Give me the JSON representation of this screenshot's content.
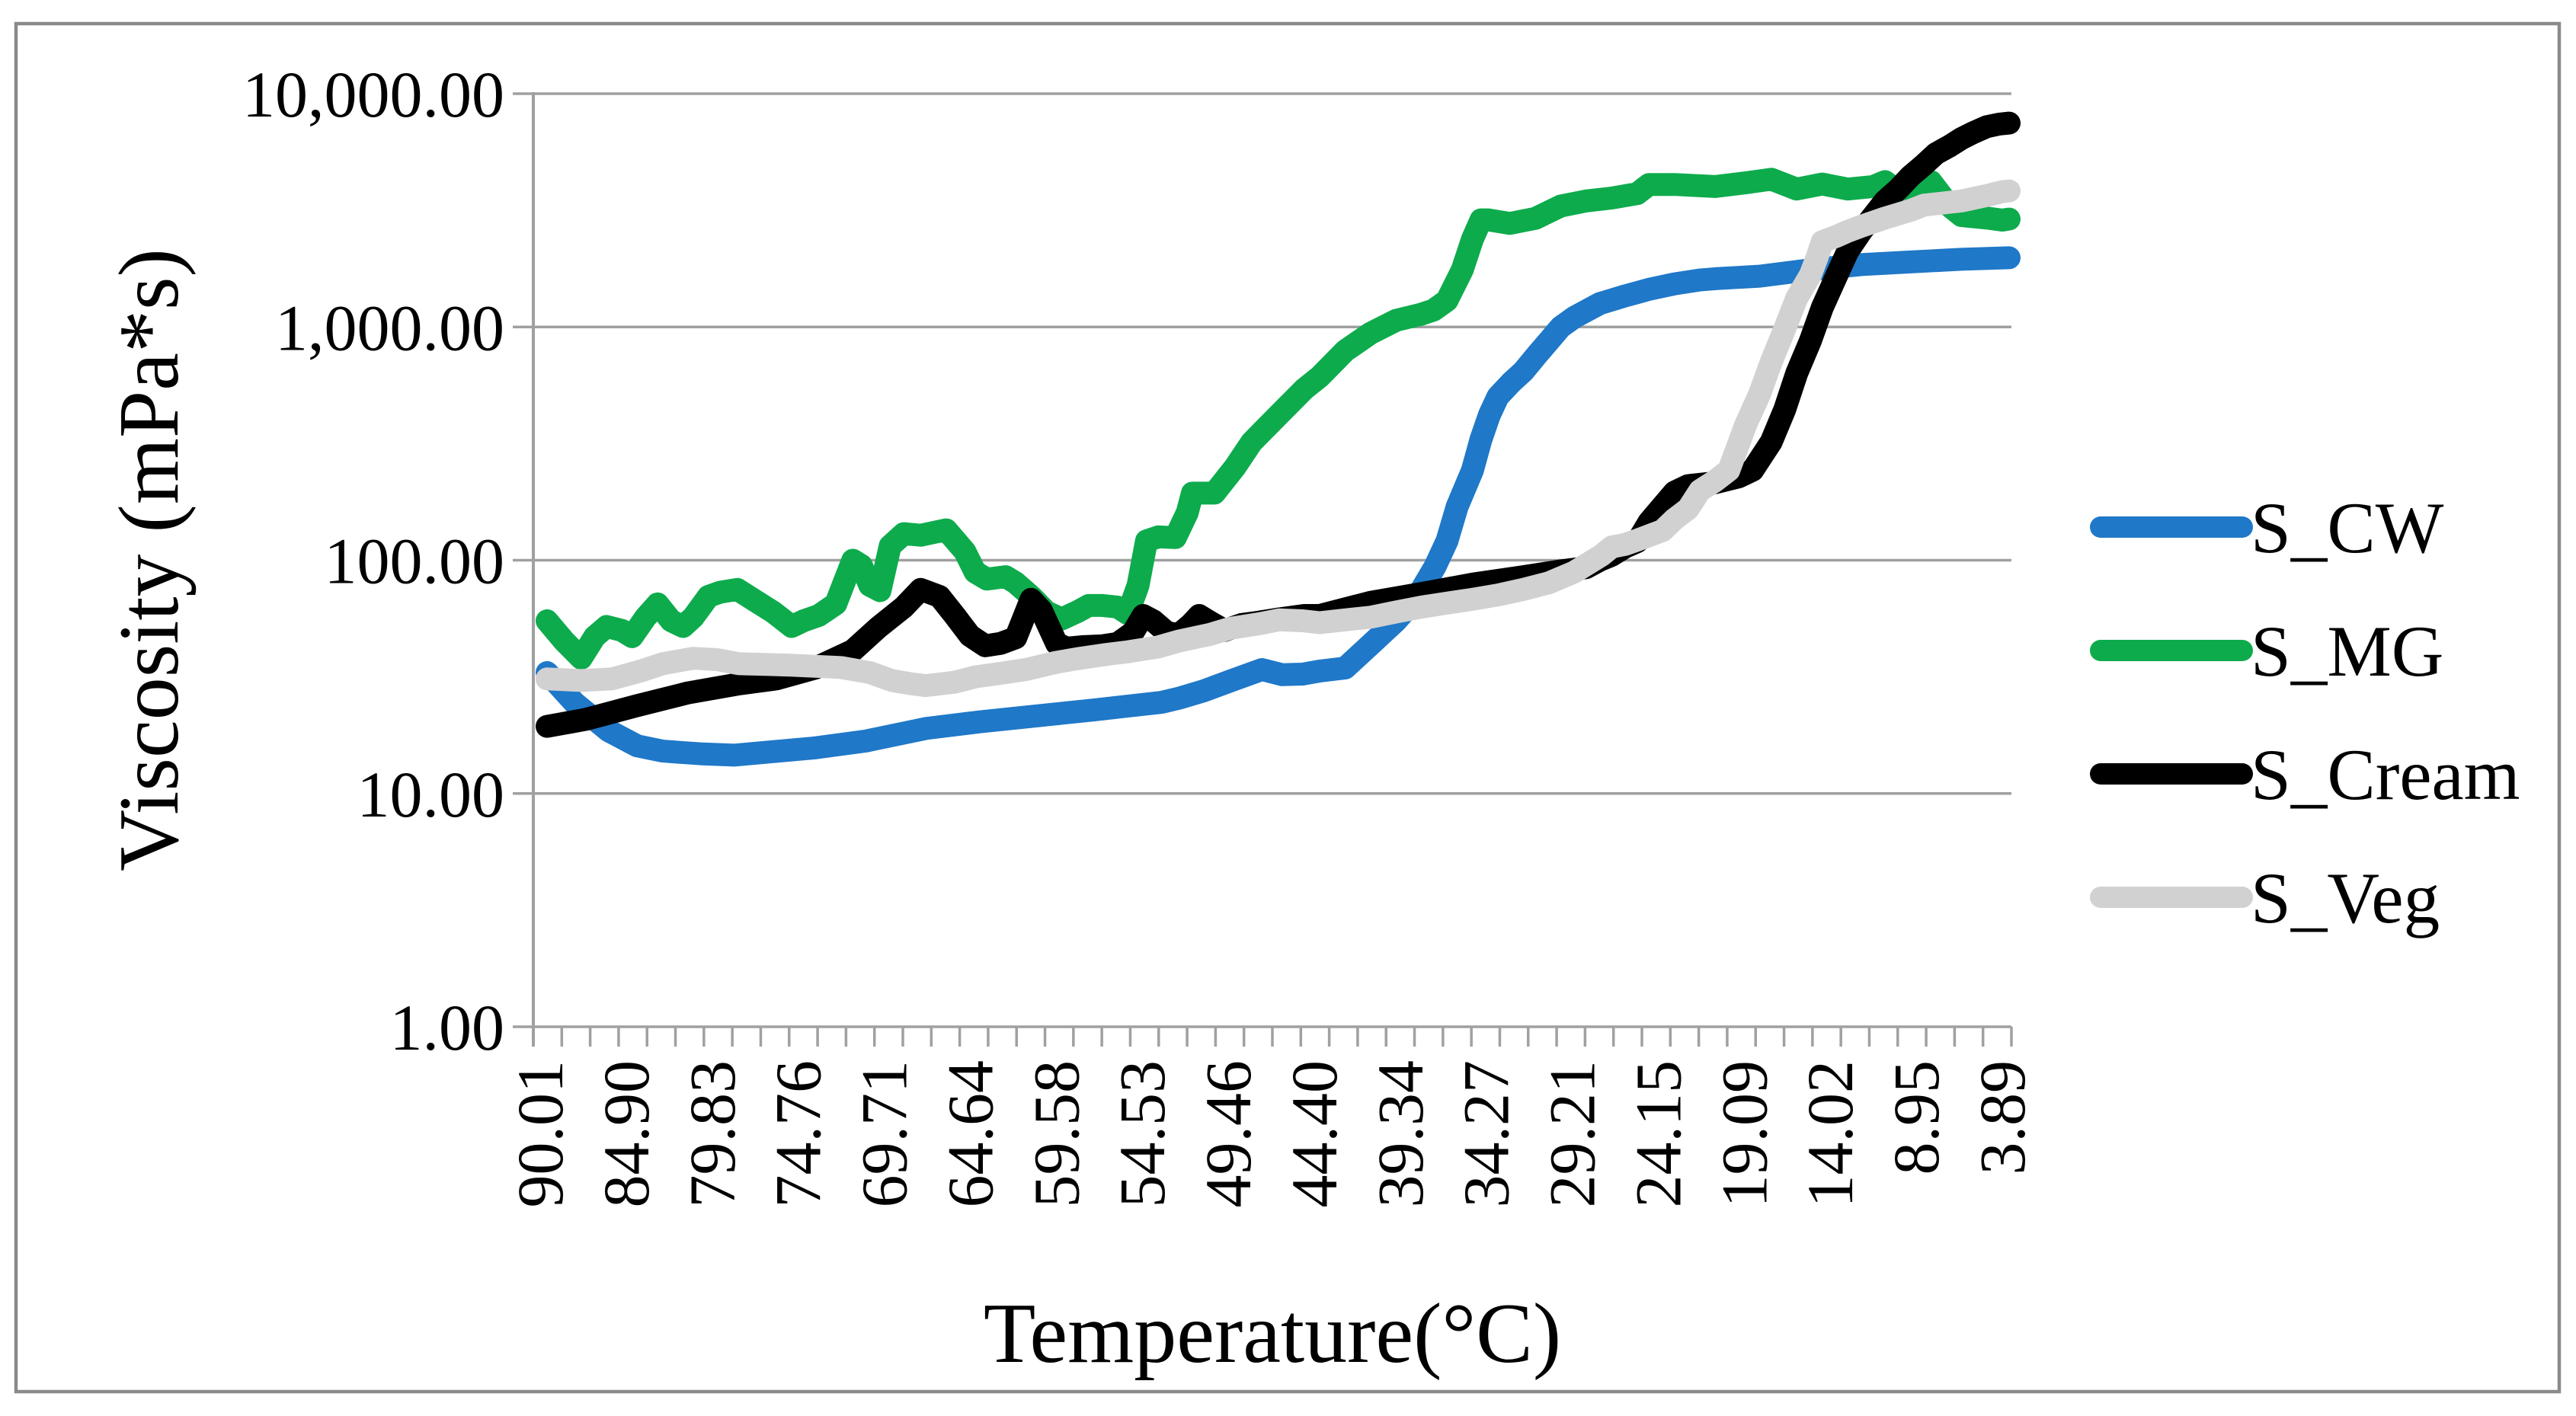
{
  "figure": {
    "background": "#ffffff",
    "border_color": "#8a8a8a",
    "grid_color": "#a0a0a0",
    "text_color": "#000000"
  },
  "chart_data": {
    "type": "line",
    "title": "",
    "xlabel": "Temperature(°C)",
    "ylabel": "Viscosity (mPa*s)",
    "grid": "horizontal",
    "legend_position": "right",
    "x_axis": {
      "direction": "decreasing",
      "max": 90.01,
      "min": 3.89,
      "tick_labels": [
        "90.01",
        "84.90",
        "79.83",
        "74.76",
        "69.71",
        "64.64",
        "59.58",
        "54.53",
        "49.46",
        "44.40",
        "39.34",
        "34.27",
        "29.21",
        "24.15",
        "19.09",
        "14.02",
        "8.95",
        "3.89"
      ],
      "minor_tick_count": 53
    },
    "y_axis": {
      "scale": "log10",
      "min": 1,
      "max": 10000,
      "tick_values": [
        10000,
        1000,
        100,
        10,
        1
      ],
      "tick_labels": [
        "10,000.00",
        "1,000.00",
        "100.00",
        "10.00",
        "1.00"
      ]
    },
    "series": [
      {
        "name": "S_CW",
        "color": "#1F78C8",
        "points": [
          [
            90.01,
            33
          ],
          [
            88.4,
            24.5
          ],
          [
            86.4,
            18.6
          ],
          [
            84.7,
            16
          ],
          [
            83.2,
            15.2
          ],
          [
            81,
            14.8
          ],
          [
            79,
            14.6
          ],
          [
            77.2,
            15
          ],
          [
            74.2,
            15.7
          ],
          [
            71.2,
            16.8
          ],
          [
            67.7,
            19
          ],
          [
            64.5,
            20.3
          ],
          [
            62,
            21.2
          ],
          [
            59.9,
            22
          ],
          [
            57.8,
            22.8
          ],
          [
            55.8,
            23.7
          ],
          [
            53.8,
            24.6
          ],
          [
            52.8,
            25.6
          ],
          [
            51.3,
            27.6
          ],
          [
            49.8,
            30.3
          ],
          [
            47.9,
            34
          ],
          [
            46.7,
            32.3
          ],
          [
            45.5,
            32.5
          ],
          [
            44.5,
            33.5
          ],
          [
            43,
            34.5
          ],
          [
            41.5,
            43.5
          ],
          [
            40,
            55
          ],
          [
            39.2,
            64
          ],
          [
            38.5,
            75
          ],
          [
            37.7,
            94
          ],
          [
            37,
            121
          ],
          [
            36.4,
            170
          ],
          [
            35.5,
            243
          ],
          [
            35,
            330
          ],
          [
            34.5,
            420
          ],
          [
            34,
            503
          ],
          [
            33.2,
            580
          ],
          [
            32.5,
            646
          ],
          [
            31.7,
            760
          ],
          [
            31,
            871
          ],
          [
            30.3,
            1000
          ],
          [
            29.5,
            1100
          ],
          [
            28,
            1260
          ],
          [
            26.5,
            1360
          ],
          [
            25.1,
            1450
          ],
          [
            23.6,
            1530
          ],
          [
            22.1,
            1590
          ],
          [
            21.2,
            1610
          ],
          [
            18.6,
            1650
          ],
          [
            15.6,
            1760
          ],
          [
            12.6,
            1850
          ],
          [
            9.7,
            1900
          ],
          [
            6.7,
            1950
          ],
          [
            3.89,
            1980
          ]
        ]
      },
      {
        "name": "S_MG",
        "color": "#0DAB4C",
        "points": [
          [
            90.01,
            55
          ],
          [
            89,
            45
          ],
          [
            88,
            38
          ],
          [
            87.2,
            47
          ],
          [
            86.5,
            52
          ],
          [
            85.6,
            50
          ],
          [
            85,
            47
          ],
          [
            84.2,
            57
          ],
          [
            83.5,
            65
          ],
          [
            82.7,
            55
          ],
          [
            82,
            52
          ],
          [
            81.4,
            57
          ],
          [
            80.5,
            70
          ],
          [
            79.8,
            73
          ],
          [
            78.8,
            75
          ],
          [
            77.6,
            66
          ],
          [
            76.7,
            60
          ],
          [
            75.6,
            52
          ],
          [
            74.9,
            55
          ],
          [
            74,
            58
          ],
          [
            73,
            65
          ],
          [
            72,
            100
          ],
          [
            71.5,
            95
          ],
          [
            71,
            78
          ],
          [
            70.4,
            74
          ],
          [
            69.8,
            115
          ],
          [
            69,
            130
          ],
          [
            68,
            128
          ],
          [
            66.5,
            135
          ],
          [
            65.4,
            109
          ],
          [
            64.8,
            89
          ],
          [
            64.1,
            83
          ],
          [
            63,
            85
          ],
          [
            62.4,
            80
          ],
          [
            61.5,
            70
          ],
          [
            60.6,
            60
          ],
          [
            59.7,
            56
          ],
          [
            58.8,
            60
          ],
          [
            58.1,
            64
          ],
          [
            57.3,
            64
          ],
          [
            56.4,
            63
          ],
          [
            55.8,
            59
          ],
          [
            55.2,
            78
          ],
          [
            54.7,
            121
          ],
          [
            54,
            126
          ],
          [
            53,
            125
          ],
          [
            52.3,
            160
          ],
          [
            52,
            194
          ],
          [
            50.7,
            194
          ],
          [
            49.5,
            250
          ],
          [
            48.5,
            321
          ],
          [
            46.9,
            421
          ],
          [
            45.4,
            542
          ],
          [
            44.5,
            612
          ],
          [
            43,
            790
          ],
          [
            41.5,
            940
          ],
          [
            40,
            1067
          ],
          [
            38.5,
            1135
          ],
          [
            37.8,
            1180
          ],
          [
            37,
            1300
          ],
          [
            36.1,
            1760
          ],
          [
            35.5,
            2380
          ],
          [
            35,
            2880
          ],
          [
            34.6,
            2880
          ],
          [
            33.3,
            2780
          ],
          [
            31.8,
            2920
          ],
          [
            30.3,
            3300
          ],
          [
            28.8,
            3470
          ],
          [
            27.3,
            3570
          ],
          [
            25.8,
            3730
          ],
          [
            25.1,
            4080
          ],
          [
            23.6,
            4080
          ],
          [
            22.1,
            4030
          ],
          [
            21.2,
            4000
          ],
          [
            19.4,
            4150
          ],
          [
            17.9,
            4300
          ],
          [
            16.4,
            3900
          ],
          [
            14.9,
            4100
          ],
          [
            13.4,
            3900
          ],
          [
            11.9,
            4000
          ],
          [
            11.2,
            4200
          ],
          [
            10.4,
            3800
          ],
          [
            9.7,
            4000
          ],
          [
            8.5,
            4200
          ],
          [
            7.4,
            3300
          ],
          [
            6.7,
            3000
          ],
          [
            5.2,
            2930
          ],
          [
            4.3,
            2870
          ],
          [
            3.89,
            2900
          ]
        ]
      },
      {
        "name": "S_Cream",
        "color": "#000000",
        "points": [
          [
            90.01,
            19.4
          ],
          [
            87.7,
            20.8
          ],
          [
            84.7,
            23.8
          ],
          [
            81.7,
            27
          ],
          [
            78.7,
            29.5
          ],
          [
            76.5,
            31
          ],
          [
            74.2,
            34.5
          ],
          [
            72,
            41
          ],
          [
            70.5,
            51.5
          ],
          [
            69,
            63
          ],
          [
            68,
            75
          ],
          [
            66.9,
            70
          ],
          [
            66,
            58
          ],
          [
            65.1,
            47.5
          ],
          [
            64.2,
            43
          ],
          [
            63.3,
            44
          ],
          [
            62.4,
            46.5
          ],
          [
            61.5,
            68
          ],
          [
            60.9,
            61
          ],
          [
            60,
            44
          ],
          [
            59.4,
            42
          ],
          [
            58.5,
            42.6
          ],
          [
            57.3,
            43
          ],
          [
            56.4,
            44
          ],
          [
            55.5,
            49
          ],
          [
            54.9,
            58
          ],
          [
            54.3,
            55
          ],
          [
            53.5,
            49
          ],
          [
            52.8,
            48
          ],
          [
            52.1,
            53
          ],
          [
            51.6,
            58
          ],
          [
            50.9,
            54
          ],
          [
            50.1,
            50
          ],
          [
            49.1,
            53
          ],
          [
            48.3,
            54
          ],
          [
            46.9,
            56
          ],
          [
            45.4,
            58
          ],
          [
            44.5,
            58
          ],
          [
            41.5,
            66
          ],
          [
            38.5,
            72
          ],
          [
            35.5,
            79
          ],
          [
            32.5,
            85
          ],
          [
            30.3,
            90
          ],
          [
            28.8,
            93
          ],
          [
            28,
            100
          ],
          [
            27.3,
            105
          ],
          [
            26.5,
            114
          ],
          [
            25.8,
            120
          ],
          [
            25.1,
            146
          ],
          [
            23.6,
            196
          ],
          [
            22.8,
            209
          ],
          [
            21.2,
            215
          ],
          [
            19.8,
            228
          ],
          [
            19,
            243
          ],
          [
            17.9,
            322
          ],
          [
            17.1,
            444
          ],
          [
            16.4,
            633
          ],
          [
            15.6,
            871
          ],
          [
            14.9,
            1210
          ],
          [
            14.1,
            1630
          ],
          [
            13.4,
            2110
          ],
          [
            12.6,
            2570
          ],
          [
            11.9,
            2990
          ],
          [
            11.2,
            3470
          ],
          [
            10.4,
            3910
          ],
          [
            9.7,
            4430
          ],
          [
            9,
            4890
          ],
          [
            8.2,
            5540
          ],
          [
            7.4,
            5960
          ],
          [
            6.7,
            6420
          ],
          [
            6,
            6810
          ],
          [
            5.2,
            7220
          ],
          [
            4.5,
            7400
          ],
          [
            3.89,
            7480
          ]
        ]
      },
      {
        "name": "S_Veg",
        "color": "#D1D1D1",
        "points": [
          [
            90.01,
            31
          ],
          [
            88,
            30.5
          ],
          [
            86.2,
            31
          ],
          [
            84.5,
            33.5
          ],
          [
            83.2,
            36
          ],
          [
            81.4,
            38
          ],
          [
            80,
            37.5
          ],
          [
            78.7,
            36
          ],
          [
            75.7,
            35.5
          ],
          [
            72.7,
            34.7
          ],
          [
            71,
            33
          ],
          [
            69.7,
            30.5
          ],
          [
            68.5,
            29.5
          ],
          [
            67.7,
            29
          ],
          [
            66,
            30
          ],
          [
            64.8,
            31.6
          ],
          [
            63,
            33
          ],
          [
            61.8,
            34
          ],
          [
            60,
            36.5
          ],
          [
            58.8,
            37.8
          ],
          [
            57,
            39.5
          ],
          [
            55.8,
            40.5
          ],
          [
            54,
            42.5
          ],
          [
            52.8,
            45
          ],
          [
            51,
            48
          ],
          [
            49.8,
            51
          ],
          [
            48,
            53.5
          ],
          [
            46.9,
            55.5
          ],
          [
            45.5,
            55
          ],
          [
            44.5,
            54
          ],
          [
            43,
            55.5
          ],
          [
            41.5,
            57
          ],
          [
            40,
            60
          ],
          [
            38.5,
            63
          ],
          [
            37,
            65.5
          ],
          [
            35.5,
            68
          ],
          [
            34,
            71
          ],
          [
            32.5,
            75
          ],
          [
            31,
            80
          ],
          [
            29.5,
            89
          ],
          [
            27.9,
            105
          ],
          [
            27.3,
            114
          ],
          [
            26.5,
            117
          ],
          [
            25.8,
            122
          ],
          [
            24.3,
            134
          ],
          [
            23.6,
            150
          ],
          [
            22.8,
            166
          ],
          [
            22.1,
            199
          ],
          [
            21.2,
            219
          ],
          [
            20.4,
            243
          ],
          [
            19.4,
            382
          ],
          [
            18.6,
            513
          ],
          [
            17.9,
            709
          ],
          [
            17.1,
            985
          ],
          [
            16.4,
            1330
          ],
          [
            15.6,
            1670
          ],
          [
            15.2,
            1990
          ],
          [
            14.9,
            2320
          ],
          [
            14.1,
            2440
          ],
          [
            13.4,
            2570
          ],
          [
            12.6,
            2700
          ],
          [
            11.2,
            2930
          ],
          [
            9.7,
            3160
          ],
          [
            8.9,
            3330
          ],
          [
            6.7,
            3470
          ],
          [
            5.2,
            3660
          ],
          [
            4.3,
            3800
          ],
          [
            3.89,
            3830
          ]
        ]
      }
    ]
  },
  "legend": {
    "items": [
      {
        "label": "S_CW",
        "color": "#1F78C8"
      },
      {
        "label": "S_MG",
        "color": "#0DAB4C"
      },
      {
        "label": "S_Cream",
        "color": "#000000"
      },
      {
        "label": "S_Veg",
        "color": "#D1D1D1"
      }
    ]
  }
}
